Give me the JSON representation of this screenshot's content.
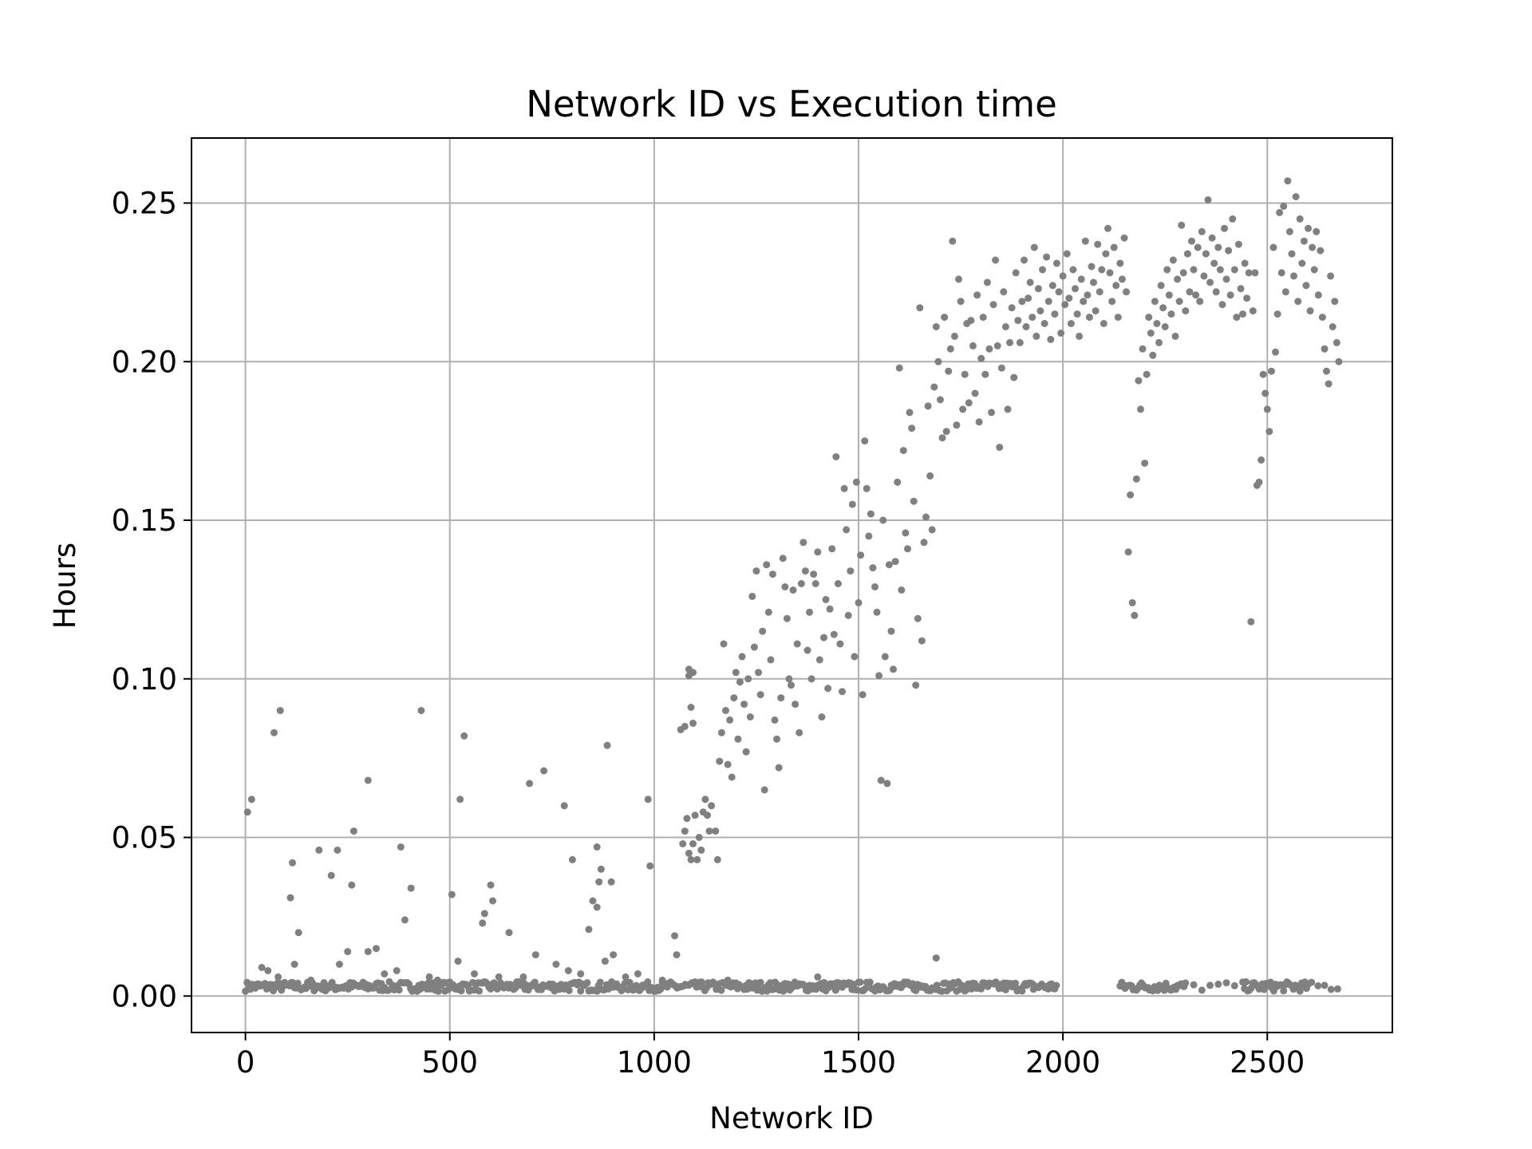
{
  "chart_data": {
    "type": "scatter",
    "title": "Network ID vs Execution time",
    "xlabel": "Network ID",
    "ylabel": "Hours",
    "xlim": [
      -132,
      2806
    ],
    "ylim": [
      -0.0115,
      0.2705
    ],
    "xticks": [
      0,
      500,
      1000,
      1500,
      2000,
      2500
    ],
    "xtick_labels": [
      "0",
      "500",
      "1000",
      "1500",
      "2000",
      "2500"
    ],
    "yticks": [
      0.0,
      0.05,
      0.1,
      0.15,
      0.2,
      0.25
    ],
    "ytick_labels": [
      "0.00",
      "0.05",
      "0.10",
      "0.15",
      "0.20",
      "0.25"
    ],
    "grid": true,
    "legend": "none",
    "marker_color": "#808080",
    "grid_color": "#b0b0b0",
    "points": [
      [
        5,
        0.058
      ],
      [
        15,
        0.062
      ],
      [
        70,
        0.083
      ],
      [
        85,
        0.09
      ],
      [
        115,
        0.042
      ],
      [
        110,
        0.031
      ],
      [
        130,
        0.02
      ],
      [
        180,
        0.046
      ],
      [
        210,
        0.038
      ],
      [
        225,
        0.046
      ],
      [
        265,
        0.052
      ],
      [
        260,
        0.035
      ],
      [
        300,
        0.068
      ],
      [
        300,
        0.014
      ],
      [
        320,
        0.015
      ],
      [
        380,
        0.047
      ],
      [
        390,
        0.024
      ],
      [
        405,
        0.034
      ],
      [
        430,
        0.09
      ],
      [
        505,
        0.032
      ],
      [
        525,
        0.062
      ],
      [
        535,
        0.082
      ],
      [
        520,
        0.011
      ],
      [
        580,
        0.023
      ],
      [
        585,
        0.026
      ],
      [
        600,
        0.035
      ],
      [
        605,
        0.03
      ],
      [
        645,
        0.02
      ],
      [
        695,
        0.067
      ],
      [
        710,
        0.013
      ],
      [
        730,
        0.071
      ],
      [
        780,
        0.06
      ],
      [
        800,
        0.043
      ],
      [
        840,
        0.021
      ],
      [
        850,
        0.03
      ],
      [
        860,
        0.047
      ],
      [
        860,
        0.028
      ],
      [
        865,
        0.036
      ],
      [
        870,
        0.04
      ],
      [
        885,
        0.079
      ],
      [
        895,
        0.036
      ],
      [
        900,
        0.013
      ],
      [
        985,
        0.062
      ],
      [
        990,
        0.041
      ],
      [
        1050,
        0.019
      ],
      [
        1055,
        0.013
      ],
      [
        40,
        0.009
      ],
      [
        55,
        0.008
      ],
      [
        80,
        0.006
      ],
      [
        120,
        0.01
      ],
      [
        160,
        0.005
      ],
      [
        230,
        0.01
      ],
      [
        250,
        0.014
      ],
      [
        340,
        0.007
      ],
      [
        370,
        0.008
      ],
      [
        450,
        0.006
      ],
      [
        470,
        0.005
      ],
      [
        560,
        0.007
      ],
      [
        620,
        0.006
      ],
      [
        680,
        0.006
      ],
      [
        760,
        0.01
      ],
      [
        790,
        0.008
      ],
      [
        820,
        0.007
      ],
      [
        880,
        0.011
      ],
      [
        930,
        0.006
      ],
      [
        960,
        0.007
      ],
      [
        1020,
        0.005
      ],
      [
        1100,
        0.004
      ],
      [
        1180,
        0.005
      ],
      [
        1400,
        0.006
      ],
      [
        1690,
        0.012
      ],
      [
        1065,
        0.084
      ],
      [
        1075,
        0.085
      ],
      [
        1085,
        0.101
      ],
      [
        1090,
        0.091
      ],
      [
        1095,
        0.102
      ],
      [
        1095,
        0.086
      ],
      [
        1085,
        0.103
      ],
      [
        1070,
        0.048
      ],
      [
        1075,
        0.052
      ],
      [
        1080,
        0.056
      ],
      [
        1085,
        0.045
      ],
      [
        1090,
        0.043
      ],
      [
        1095,
        0.048
      ],
      [
        1100,
        0.057
      ],
      [
        1105,
        0.043
      ],
      [
        1110,
        0.05
      ],
      [
        1115,
        0.046
      ],
      [
        1120,
        0.058
      ],
      [
        1125,
        0.062
      ],
      [
        1130,
        0.057
      ],
      [
        1135,
        0.052
      ],
      [
        1140,
        0.06
      ],
      [
        1150,
        0.052
      ],
      [
        1155,
        0.043
      ],
      [
        1160,
        0.074
      ],
      [
        1165,
        0.083
      ],
      [
        1170,
        0.111
      ],
      [
        1175,
        0.09
      ],
      [
        1180,
        0.073
      ],
      [
        1185,
        0.087
      ],
      [
        1190,
        0.069
      ],
      [
        1195,
        0.094
      ],
      [
        1200,
        0.102
      ],
      [
        1205,
        0.081
      ],
      [
        1210,
        0.099
      ],
      [
        1215,
        0.107
      ],
      [
        1220,
        0.092
      ],
      [
        1225,
        0.077
      ],
      [
        1230,
        0.1
      ],
      [
        1235,
        0.088
      ],
      [
        1240,
        0.126
      ],
      [
        1245,
        0.11
      ],
      [
        1250,
        0.134
      ],
      [
        1255,
        0.102
      ],
      [
        1260,
        0.095
      ],
      [
        1265,
        0.115
      ],
      [
        1270,
        0.065
      ],
      [
        1275,
        0.136
      ],
      [
        1280,
        0.121
      ],
      [
        1285,
        0.106
      ],
      [
        1290,
        0.133
      ],
      [
        1295,
        0.087
      ],
      [
        1300,
        0.081
      ],
      [
        1305,
        0.072
      ],
      [
        1310,
        0.094
      ],
      [
        1315,
        0.138
      ],
      [
        1320,
        0.129
      ],
      [
        1325,
        0.119
      ],
      [
        1330,
        0.1
      ],
      [
        1335,
        0.098
      ],
      [
        1340,
        0.128
      ],
      [
        1345,
        0.092
      ],
      [
        1350,
        0.111
      ],
      [
        1355,
        0.083
      ],
      [
        1360,
        0.13
      ],
      [
        1365,
        0.143
      ],
      [
        1370,
        0.134
      ],
      [
        1375,
        0.109
      ],
      [
        1380,
        0.121
      ],
      [
        1385,
        0.1
      ],
      [
        1390,
        0.133
      ],
      [
        1395,
        0.13
      ],
      [
        1400,
        0.14
      ],
      [
        1405,
        0.106
      ],
      [
        1410,
        0.088
      ],
      [
        1415,
        0.113
      ],
      [
        1420,
        0.125
      ],
      [
        1425,
        0.097
      ],
      [
        1430,
        0.122
      ],
      [
        1435,
        0.141
      ],
      [
        1440,
        0.114
      ],
      [
        1445,
        0.17
      ],
      [
        1450,
        0.13
      ],
      [
        1455,
        0.111
      ],
      [
        1460,
        0.096
      ],
      [
        1465,
        0.16
      ],
      [
        1470,
        0.147
      ],
      [
        1475,
        0.12
      ],
      [
        1480,
        0.134
      ],
      [
        1485,
        0.155
      ],
      [
        1490,
        0.107
      ],
      [
        1495,
        0.162
      ],
      [
        1500,
        0.124
      ],
      [
        1505,
        0.139
      ],
      [
        1510,
        0.095
      ],
      [
        1515,
        0.175
      ],
      [
        1520,
        0.16
      ],
      [
        1525,
        0.145
      ],
      [
        1530,
        0.152
      ],
      [
        1535,
        0.135
      ],
      [
        1540,
        0.129
      ],
      [
        1545,
        0.121
      ],
      [
        1550,
        0.101
      ],
      [
        1555,
        0.068
      ],
      [
        1560,
        0.15
      ],
      [
        1565,
        0.107
      ],
      [
        1570,
        0.067
      ],
      [
        1575,
        0.136
      ],
      [
        1580,
        0.115
      ],
      [
        1585,
        0.103
      ],
      [
        1590,
        0.137
      ],
      [
        1595,
        0.162
      ],
      [
        1600,
        0.198
      ],
      [
        1605,
        0.128
      ],
      [
        1610,
        0.172
      ],
      [
        1615,
        0.146
      ],
      [
        1620,
        0.141
      ],
      [
        1625,
        0.184
      ],
      [
        1630,
        0.179
      ],
      [
        1635,
        0.156
      ],
      [
        1640,
        0.098
      ],
      [
        1645,
        0.119
      ],
      [
        1650,
        0.217
      ],
      [
        1655,
        0.112
      ],
      [
        1660,
        0.143
      ],
      [
        1665,
        0.151
      ],
      [
        1670,
        0.186
      ],
      [
        1675,
        0.164
      ],
      [
        1680,
        0.147
      ],
      [
        1685,
        0.192
      ],
      [
        1690,
        0.211
      ],
      [
        1695,
        0.2
      ],
      [
        1700,
        0.188
      ],
      [
        1705,
        0.176
      ],
      [
        1710,
        0.214
      ],
      [
        1715,
        0.178
      ],
      [
        1720,
        0.197
      ],
      [
        1725,
        0.204
      ],
      [
        1730,
        0.238
      ],
      [
        1735,
        0.208
      ],
      [
        1740,
        0.18
      ],
      [
        1745,
        0.226
      ],
      [
        1750,
        0.219
      ],
      [
        1755,
        0.185
      ],
      [
        1760,
        0.196
      ],
      [
        1765,
        0.212
      ],
      [
        1770,
        0.187
      ],
      [
        1775,
        0.213
      ],
      [
        1780,
        0.205
      ],
      [
        1785,
        0.19
      ],
      [
        1790,
        0.221
      ],
      [
        1795,
        0.181
      ],
      [
        1800,
        0.201
      ],
      [
        1805,
        0.214
      ],
      [
        1810,
        0.196
      ],
      [
        1815,
        0.225
      ],
      [
        1820,
        0.204
      ],
      [
        1825,
        0.184
      ],
      [
        1830,
        0.218
      ],
      [
        1835,
        0.232
      ],
      [
        1840,
        0.205
      ],
      [
        1845,
        0.173
      ],
      [
        1850,
        0.198
      ],
      [
        1855,
        0.222
      ],
      [
        1860,
        0.211
      ],
      [
        1865,
        0.185
      ],
      [
        1870,
        0.206
      ],
      [
        1875,
        0.217
      ],
      [
        1880,
        0.195
      ],
      [
        1885,
        0.228
      ],
      [
        1890,
        0.213
      ],
      [
        1895,
        0.206
      ],
      [
        1900,
        0.219
      ],
      [
        1905,
        0.232
      ],
      [
        1910,
        0.211
      ],
      [
        1915,
        0.22
      ],
      [
        1920,
        0.225
      ],
      [
        1925,
        0.214
      ],
      [
        1930,
        0.236
      ],
      [
        1935,
        0.208
      ],
      [
        1940,
        0.223
      ],
      [
        1945,
        0.216
      ],
      [
        1950,
        0.229
      ],
      [
        1955,
        0.212
      ],
      [
        1960,
        0.233
      ],
      [
        1965,
        0.219
      ],
      [
        1970,
        0.207
      ],
      [
        1975,
        0.224
      ],
      [
        1980,
        0.215
      ],
      [
        1985,
        0.231
      ],
      [
        1990,
        0.222
      ],
      [
        1995,
        0.209
      ],
      [
        2000,
        0.227
      ],
      [
        2005,
        0.218
      ],
      [
        2010,
        0.234
      ],
      [
        2015,
        0.22
      ],
      [
        2020,
        0.212
      ],
      [
        2025,
        0.229
      ],
      [
        2030,
        0.223
      ],
      [
        2035,
        0.215
      ],
      [
        2040,
        0.208
      ],
      [
        2045,
        0.226
      ],
      [
        2050,
        0.219
      ],
      [
        2055,
        0.238
      ],
      [
        2060,
        0.221
      ],
      [
        2065,
        0.214
      ],
      [
        2070,
        0.23
      ],
      [
        2075,
        0.225
      ],
      [
        2080,
        0.216
      ],
      [
        2085,
        0.237
      ],
      [
        2090,
        0.222
      ],
      [
        2095,
        0.229
      ],
      [
        2100,
        0.212
      ],
      [
        2105,
        0.234
      ],
      [
        2110,
        0.242
      ],
      [
        2115,
        0.228
      ],
      [
        2120,
        0.219
      ],
      [
        2125,
        0.236
      ],
      [
        2130,
        0.224
      ],
      [
        2135,
        0.214
      ],
      [
        2140,
        0.231
      ],
      [
        2145,
        0.226
      ],
      [
        2150,
        0.239
      ],
      [
        2155,
        0.222
      ],
      [
        2160,
        0.14
      ],
      [
        2165,
        0.158
      ],
      [
        2170,
        0.124
      ],
      [
        2175,
        0.12
      ],
      [
        2180,
        0.163
      ],
      [
        2185,
        0.194
      ],
      [
        2190,
        0.185
      ],
      [
        2195,
        0.204
      ],
      [
        2200,
        0.168
      ],
      [
        2205,
        0.196
      ],
      [
        2210,
        0.214
      ],
      [
        2215,
        0.209
      ],
      [
        2220,
        0.202
      ],
      [
        2225,
        0.219
      ],
      [
        2230,
        0.212
      ],
      [
        2235,
        0.206
      ],
      [
        2240,
        0.224
      ],
      [
        2245,
        0.217
      ],
      [
        2250,
        0.211
      ],
      [
        2255,
        0.229
      ],
      [
        2260,
        0.221
      ],
      [
        2265,
        0.215
      ],
      [
        2270,
        0.232
      ],
      [
        2275,
        0.208
      ],
      [
        2280,
        0.226
      ],
      [
        2285,
        0.219
      ],
      [
        2290,
        0.243
      ],
      [
        2295,
        0.228
      ],
      [
        2300,
        0.216
      ],
      [
        2305,
        0.234
      ],
      [
        2310,
        0.222
      ],
      [
        2315,
        0.238
      ],
      [
        2320,
        0.229
      ],
      [
        2325,
        0.221
      ],
      [
        2330,
        0.236
      ],
      [
        2335,
        0.219
      ],
      [
        2340,
        0.241
      ],
      [
        2345,
        0.227
      ],
      [
        2350,
        0.234
      ],
      [
        2355,
        0.251
      ],
      [
        2360,
        0.225
      ],
      [
        2365,
        0.239
      ],
      [
        2370,
        0.231
      ],
      [
        2375,
        0.222
      ],
      [
        2380,
        0.236
      ],
      [
        2385,
        0.229
      ],
      [
        2390,
        0.218
      ],
      [
        2395,
        0.242
      ],
      [
        2400,
        0.226
      ],
      [
        2405,
        0.235
      ],
      [
        2410,
        0.221
      ],
      [
        2415,
        0.245
      ],
      [
        2420,
        0.229
      ],
      [
        2425,
        0.214
      ],
      [
        2430,
        0.237
      ],
      [
        2435,
        0.223
      ],
      [
        2440,
        0.215
      ],
      [
        2445,
        0.231
      ],
      [
        2450,
        0.22
      ],
      [
        2455,
        0.228
      ],
      [
        2460,
        0.118
      ],
      [
        2465,
        0.216
      ],
      [
        2470,
        0.228
      ],
      [
        2475,
        0.161
      ],
      [
        2480,
        0.162
      ],
      [
        2485,
        0.169
      ],
      [
        2490,
        0.196
      ],
      [
        2495,
        0.19
      ],
      [
        2500,
        0.185
      ],
      [
        2505,
        0.178
      ],
      [
        2510,
        0.197
      ],
      [
        2515,
        0.236
      ],
      [
        2520,
        0.203
      ],
      [
        2525,
        0.215
      ],
      [
        2530,
        0.247
      ],
      [
        2535,
        0.228
      ],
      [
        2540,
        0.249
      ],
      [
        2545,
        0.222
      ],
      [
        2550,
        0.257
      ],
      [
        2555,
        0.241
      ],
      [
        2560,
        0.234
      ],
      [
        2565,
        0.227
      ],
      [
        2570,
        0.252
      ],
      [
        2575,
        0.219
      ],
      [
        2580,
        0.245
      ],
      [
        2585,
        0.231
      ],
      [
        2590,
        0.238
      ],
      [
        2595,
        0.224
      ],
      [
        2600,
        0.242
      ],
      [
        2605,
        0.216
      ],
      [
        2610,
        0.236
      ],
      [
        2615,
        0.229
      ],
      [
        2620,
        0.241
      ],
      [
        2625,
        0.221
      ],
      [
        2630,
        0.235
      ],
      [
        2635,
        0.214
      ],
      [
        2640,
        0.204
      ],
      [
        2645,
        0.197
      ],
      [
        2650,
        0.193
      ],
      [
        2655,
        0.227
      ],
      [
        2660,
        0.211
      ],
      [
        2665,
        0.219
      ],
      [
        2670,
        0.206
      ],
      [
        2675,
        0.2
      ]
    ]
  }
}
